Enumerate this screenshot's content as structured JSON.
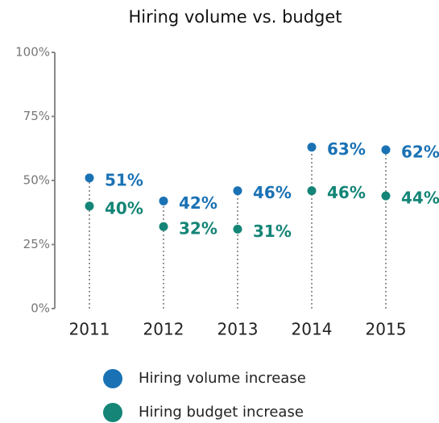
{
  "chart_data": {
    "type": "dot",
    "title": "Hiring volume vs. budget",
    "categories": [
      "2011",
      "2012",
      "2013",
      "2014",
      "2015"
    ],
    "series": [
      {
        "name": "Hiring volume increase",
        "color": "#1a72b4",
        "values": [
          51,
          42,
          46,
          63,
          62
        ],
        "value_labels": [
          "51%",
          "42%",
          "46%",
          "63%",
          "62%"
        ]
      },
      {
        "name": "Hiring budget increase",
        "color": "#148577",
        "values": [
          40,
          32,
          31,
          46,
          44
        ],
        "value_labels": [
          "40%",
          "32%",
          "31%",
          "46%",
          "44%"
        ]
      }
    ],
    "ylim": [
      0,
      100
    ],
    "yticks": [
      {
        "value": 0,
        "label": "0%"
      },
      {
        "value": 25,
        "label": "25%"
      },
      {
        "value": 50,
        "label": "50%"
      },
      {
        "value": 75,
        "label": "75%"
      },
      {
        "value": 100,
        "label": "100%"
      }
    ]
  }
}
